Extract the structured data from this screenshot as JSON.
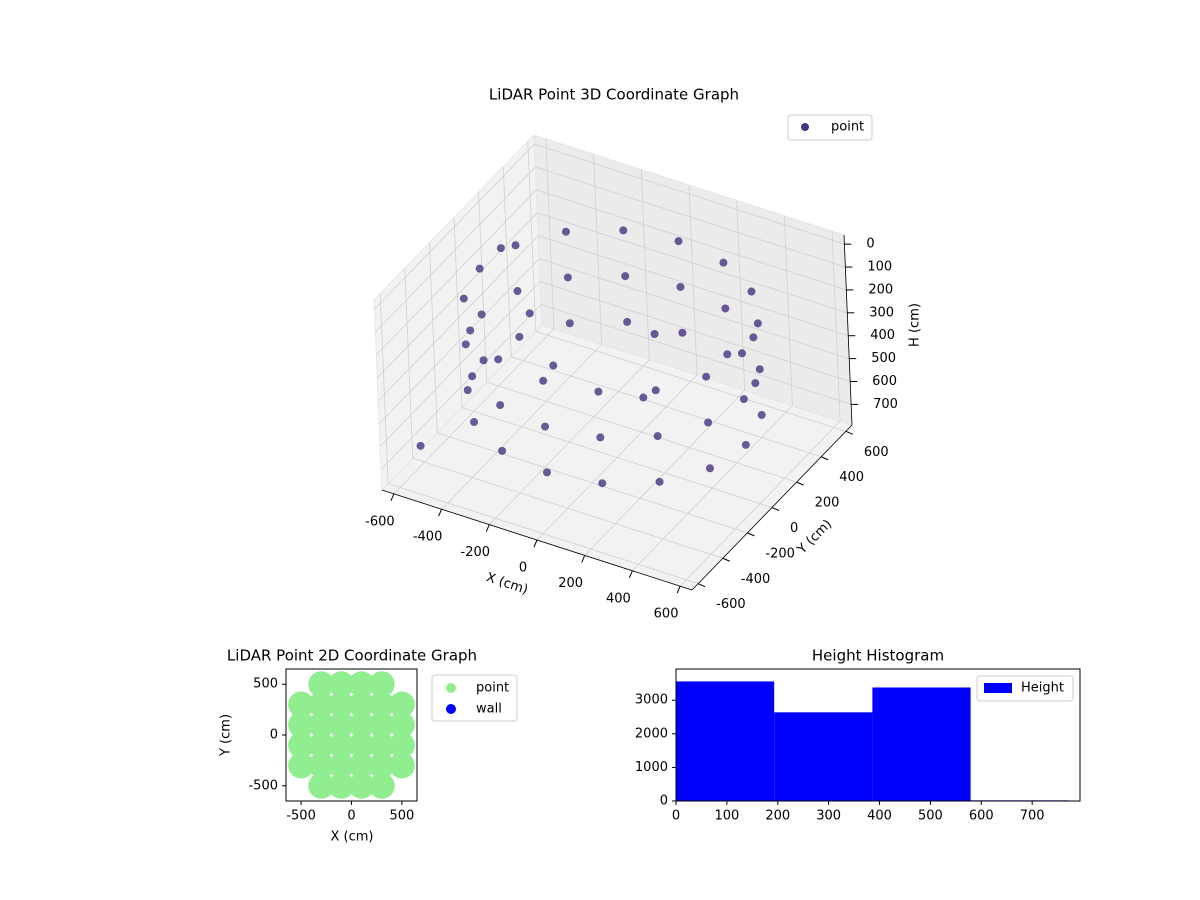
{
  "chart_data": [
    {
      "type": "scatter3d",
      "title": "LiDAR Point 3D Coordinate Graph",
      "xlabel": "X (cm)",
      "ylabel": "Y (cm)",
      "zlabel": "H (cm)",
      "xlim": [
        -650,
        650
      ],
      "ylim": [
        -650,
        650
      ],
      "zlim": [
        -40,
        790
      ],
      "z_inverted": true,
      "xticks": [
        -600,
        -400,
        -200,
        0,
        200,
        400,
        600
      ],
      "yticks": [
        -600,
        -400,
        -200,
        0,
        200,
        400,
        600
      ],
      "zticks": [
        0,
        100,
        200,
        300,
        400,
        500,
        600,
        700
      ],
      "grid": true,
      "legend": "upper right",
      "series": [
        {
          "name": "point",
          "color": "#46327e",
          "x": [
            550,
            508,
            389,
            210,
            0,
            -210,
            -389,
            -508,
            -550,
            -508,
            -389,
            -210,
            0,
            210,
            389,
            508,
            550,
            508,
            389,
            210,
            0,
            -210,
            -389,
            -508,
            -550,
            -508,
            -389,
            -210,
            0,
            210,
            389,
            508,
            550,
            508,
            389,
            210,
            0,
            -210,
            -389,
            -508,
            -550,
            -508,
            -389,
            -210,
            0,
            210,
            389,
            508,
            -200,
            100,
            -400,
            150,
            -620,
            -560
          ],
          "y": [
            0,
            210,
            389,
            508,
            550,
            508,
            389,
            210,
            0,
            -210,
            -389,
            -508,
            -550,
            -508,
            -389,
            -210,
            0,
            210,
            389,
            508,
            550,
            508,
            389,
            210,
            0,
            -210,
            -389,
            -508,
            -550,
            -508,
            -389,
            -210,
            0,
            210,
            389,
            508,
            550,
            508,
            389,
            210,
            0,
            -210,
            -389,
            -508,
            -550,
            -508,
            -389,
            -210,
            -100,
            150,
            100,
            -50,
            300,
            -500
          ],
          "z": [
            150,
            150,
            150,
            150,
            150,
            150,
            150,
            150,
            150,
            150,
            150,
            150,
            150,
            150,
            150,
            150,
            350,
            350,
            350,
            350,
            350,
            350,
            350,
            350,
            350,
            350,
            350,
            350,
            350,
            350,
            350,
            350,
            550,
            550,
            550,
            550,
            550,
            550,
            550,
            550,
            550,
            550,
            550,
            550,
            550,
            550,
            550,
            550,
            400,
            300,
            350,
            450,
            250,
            650
          ]
        }
      ]
    },
    {
      "type": "scatter",
      "title": "LiDAR Point 2D Coordinate Graph",
      "xlabel": "X (cm)",
      "ylabel": "Y (cm)",
      "xlim": [
        -650,
        650
      ],
      "ylim": [
        -650,
        650
      ],
      "xticks": [
        -500,
        0,
        500
      ],
      "yticks": [
        -500,
        0,
        500
      ],
      "legend": "outside right",
      "series": [
        {
          "name": "point",
          "color": "#90ee90",
          "x": [
            -300,
            -100,
            100,
            300,
            -500,
            -300,
            -100,
            100,
            300,
            500,
            -500,
            -300,
            -100,
            100,
            300,
            500,
            -500,
            -300,
            -100,
            100,
            300,
            500,
            -500,
            -300,
            -100,
            100,
            300,
            500,
            -300,
            -100,
            100,
            300
          ],
          "y": [
            500,
            500,
            500,
            500,
            300,
            300,
            300,
            300,
            300,
            300,
            100,
            100,
            100,
            100,
            100,
            100,
            -100,
            -100,
            -100,
            -100,
            -100,
            -100,
            -300,
            -300,
            -300,
            -300,
            -300,
            -300,
            -500,
            -500,
            -500,
            -500
          ]
        },
        {
          "name": "wall",
          "color": "#0000ff",
          "x": [],
          "y": []
        }
      ]
    },
    {
      "type": "histogram",
      "title": "Height Histogram",
      "xlim": [
        0,
        794
      ],
      "ylim": [
        0,
        3930
      ],
      "xticks": [
        0,
        100,
        200,
        300,
        400,
        500,
        600,
        700
      ],
      "yticks": [
        0,
        1000,
        2000,
        3000
      ],
      "legend": "upper right",
      "bins": [
        0,
        193,
        386,
        579,
        772
      ],
      "series": [
        {
          "name": "Height",
          "color": "#0000ff",
          "values": [
            3560,
            2640,
            3380,
            20
          ]
        }
      ]
    }
  ]
}
